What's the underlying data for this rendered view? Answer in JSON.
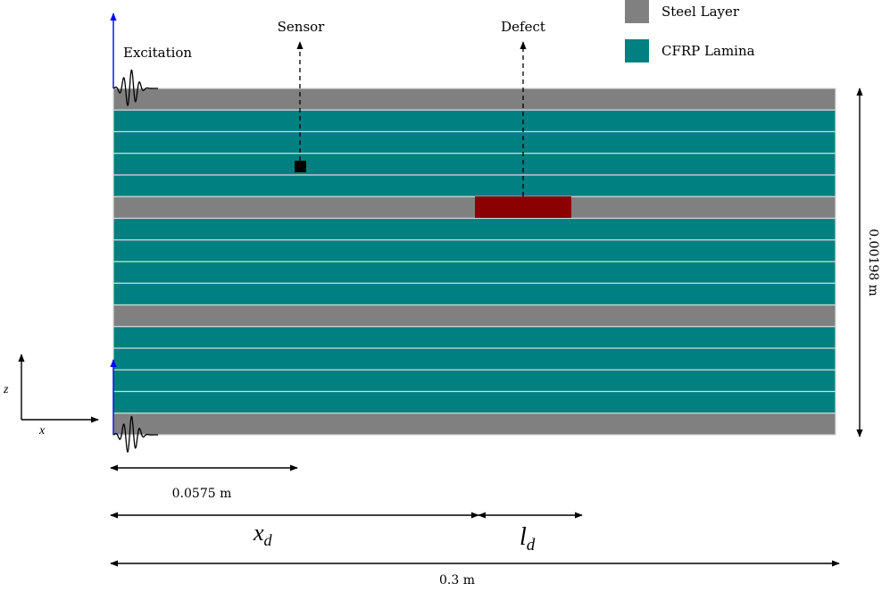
{
  "legend": {
    "items": [
      {
        "label": "Steel Layer",
        "color": "#808080"
      },
      {
        "label": "CFRP Lamina",
        "color": "#008080"
      }
    ]
  },
  "labels": {
    "excitation": "Excitation",
    "sensor": "Sensor",
    "defect": "Defect",
    "height_dim": "0.00198 m",
    "sensor_dim": "0.0575 m",
    "total_dim": "0.3 m",
    "xd_main": "x",
    "xd_sub": "d",
    "ld_main": "l",
    "ld_sub": "d",
    "axis_z": "z",
    "axis_x": "x"
  },
  "layers": [
    "steel",
    "cfrp",
    "cfrp",
    "cfrp",
    "cfrp",
    "steel",
    "cfrp",
    "cfrp",
    "cfrp",
    "cfrp",
    "steel",
    "cfrp",
    "cfrp",
    "cfrp",
    "cfrp",
    "steel"
  ],
  "colors": {
    "steel": "#808080",
    "cfrp": "#008080",
    "defect": "#8b0000",
    "sensor": "#000000",
    "excitation_arrow": "#0000ff",
    "layer_border": "#d8d8d8"
  }
}
